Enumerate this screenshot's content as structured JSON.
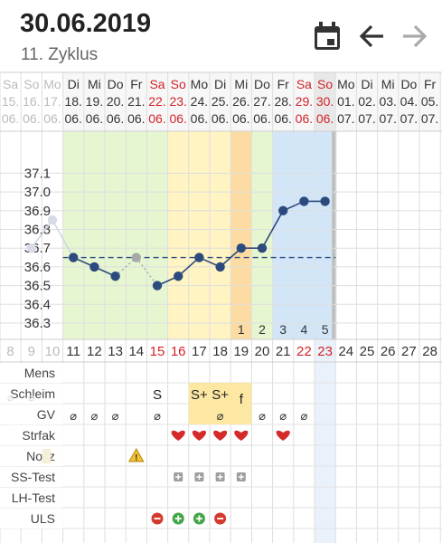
{
  "header": {
    "date": "30.06.2019",
    "cycle": "11. Zyklus",
    "icons": [
      "calendar-icon",
      "arrow-left-icon",
      "arrow-right-icon"
    ]
  },
  "days": [
    {
      "wd": "Sa",
      "dd": "15.",
      "mm": "06.",
      "num": "8",
      "kind": "faded"
    },
    {
      "wd": "So",
      "dd": "16.",
      "mm": "06.",
      "num": "9",
      "kind": "faded"
    },
    {
      "wd": "Mo",
      "dd": "17.",
      "mm": "06.",
      "num": "10",
      "kind": "faded"
    },
    {
      "wd": "Di",
      "dd": "18.",
      "mm": "06.",
      "num": "11",
      "kind": "normal"
    },
    {
      "wd": "Mi",
      "dd": "19.",
      "mm": "06.",
      "num": "12",
      "kind": "normal"
    },
    {
      "wd": "Do",
      "dd": "20.",
      "mm": "06.",
      "num": "13",
      "kind": "normal"
    },
    {
      "wd": "Fr",
      "dd": "21.",
      "mm": "06.",
      "num": "14",
      "kind": "normal"
    },
    {
      "wd": "Sa",
      "dd": "22.",
      "mm": "06.",
      "num": "15",
      "kind": "weekend"
    },
    {
      "wd": "So",
      "dd": "23.",
      "mm": "06.",
      "num": "16",
      "kind": "weekend"
    },
    {
      "wd": "Mo",
      "dd": "24.",
      "mm": "06.",
      "num": "17",
      "kind": "normal"
    },
    {
      "wd": "Di",
      "dd": "25.",
      "mm": "06.",
      "num": "18",
      "kind": "normal"
    },
    {
      "wd": "Mi",
      "dd": "26.",
      "mm": "06.",
      "num": "19",
      "kind": "normal"
    },
    {
      "wd": "Do",
      "dd": "27.",
      "mm": "06.",
      "num": "20",
      "kind": "normal"
    },
    {
      "wd": "Fr",
      "dd": "28.",
      "mm": "06.",
      "num": "21",
      "kind": "normal"
    },
    {
      "wd": "Sa",
      "dd": "29.",
      "mm": "06.",
      "num": "22",
      "kind": "weekend"
    },
    {
      "wd": "So",
      "dd": "30.",
      "mm": "06.",
      "num": "23",
      "kind": "weekend"
    },
    {
      "wd": "Mo",
      "dd": "01.",
      "mm": "07.",
      "num": "24",
      "kind": "normal"
    },
    {
      "wd": "Di",
      "dd": "02.",
      "mm": "07.",
      "num": "25",
      "kind": "normal"
    },
    {
      "wd": "Mi",
      "dd": "03.",
      "mm": "07.",
      "num": "26",
      "kind": "normal"
    },
    {
      "wd": "Do",
      "dd": "04.",
      "mm": "07.",
      "num": "27",
      "kind": "normal"
    },
    {
      "wd": "Fr",
      "dd": "05.",
      "mm": "07.",
      "num": "28",
      "kind": "normal"
    }
  ],
  "colors": {
    "green": "#e6f6d1",
    "yellow": "#fff4c2",
    "orange": "#fddca3",
    "blue": "#d3e6f8",
    "blue_light": "#e9f2fb",
    "line": "#2d4a7e",
    "weekend": "#d2232a",
    "faded": "#bbbbbb",
    "grey_col": "#bdbdbd"
  },
  "chart_data": {
    "type": "line",
    "ylabel": "",
    "yticks": [
      "36.3",
      "36.4",
      "36.5",
      "36.6",
      "36.7",
      "36.8",
      "36.9",
      "37.0",
      "37.1"
    ],
    "coverline": 36.65,
    "x": [
      "15.06.",
      "16.06.",
      "17.06.",
      "18.06.",
      "19.06.",
      "20.06.",
      "21.06.",
      "22.06.",
      "23.06.",
      "24.06.",
      "25.06.",
      "26.06.",
      "27.06.",
      "28.06.",
      "29.06.",
      "30.06."
    ],
    "temps": [
      null,
      36.7,
      36.85,
      36.65,
      36.6,
      36.55,
      36.65,
      36.5,
      36.55,
      36.65,
      36.6,
      36.7,
      36.7,
      36.9,
      36.95,
      36.95
    ],
    "excluded": [
      false,
      false,
      false,
      false,
      false,
      false,
      true,
      false,
      false,
      false,
      false,
      false,
      false,
      false,
      false,
      false
    ],
    "high_phase_labels": [
      "1",
      "2",
      "3",
      "4",
      "5"
    ]
  },
  "rows": {
    "labels": [
      "Mens",
      "Schleim",
      "GV",
      "Strfak",
      "Notiz",
      "SS-Test",
      "LH-Test",
      "ULS"
    ],
    "schleim_top": [
      {
        "col": 7,
        "text": "S"
      },
      {
        "col": 9,
        "text": "S+"
      },
      {
        "col": 10,
        "text": "S+"
      },
      {
        "col": 11,
        "text": "f"
      }
    ],
    "schleim_empty_symbol": "⌀",
    "lh_test": [
      "minus",
      "plus",
      "plus",
      "minus"
    ]
  }
}
